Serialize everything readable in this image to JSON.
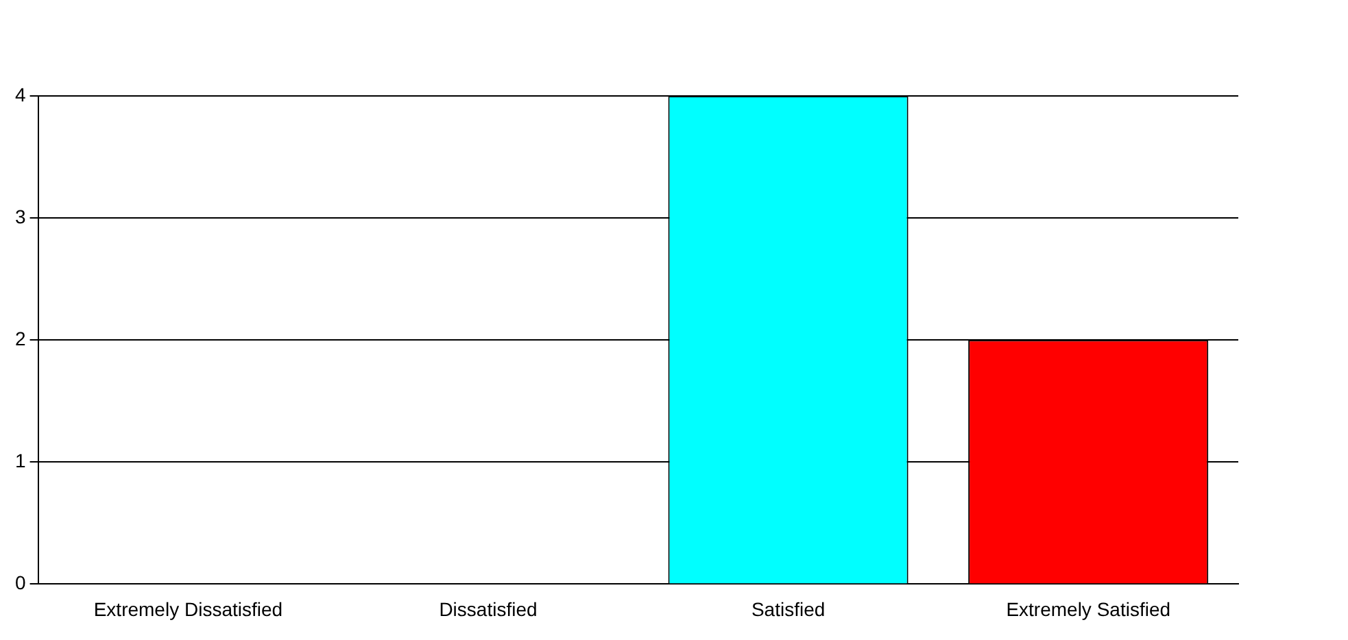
{
  "chart_data": {
    "type": "bar",
    "categories": [
      "Extremely Dissatisfied",
      "Dissatisfied",
      "Satisfied",
      "Extremely Satisfied"
    ],
    "values": [
      0,
      0,
      4,
      2
    ],
    "colors": [
      "#000080",
      "#008000",
      "#00ffff",
      "#ff0000"
    ],
    "ylim": [
      0,
      4
    ],
    "yticks": [
      0,
      1,
      2,
      3,
      4
    ],
    "grid": "y",
    "legend": false
  }
}
